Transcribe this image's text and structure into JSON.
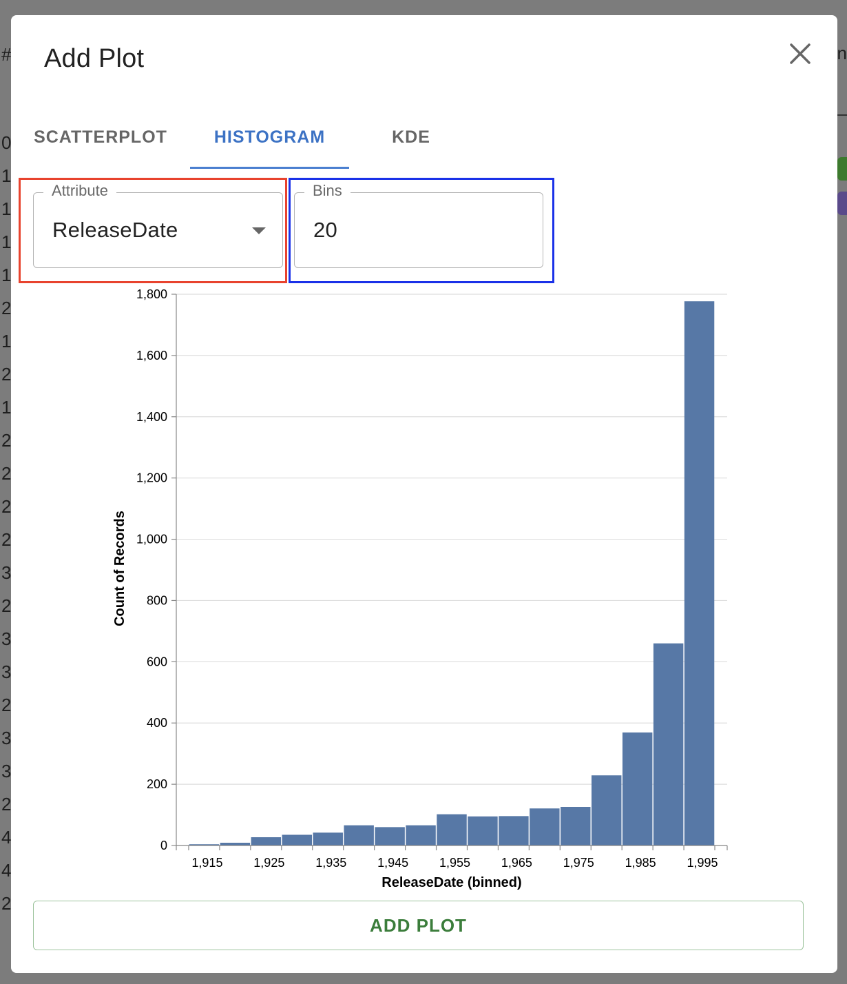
{
  "background": {
    "left_chars": [
      "#",
      "0",
      "1",
      "1",
      "1",
      "1",
      "2",
      "1",
      "2",
      "1",
      "2",
      "2",
      "2",
      "2",
      "3",
      "2",
      "3",
      "3",
      "2",
      "3",
      "3",
      "2",
      "4",
      "4",
      "2"
    ],
    "right_char": "n"
  },
  "modal": {
    "title": "Add Plot",
    "close_icon": "close-icon"
  },
  "tabs": [
    {
      "label": "SCATTERPLOT",
      "active": false
    },
    {
      "label": "HISTOGRAM",
      "active": true
    },
    {
      "label": "KDE",
      "active": false
    }
  ],
  "attribute_field": {
    "label": "Attribute",
    "value": "ReleaseDate",
    "icon": "dropdown-arrow-icon"
  },
  "bins_field": {
    "label": "Bins",
    "value": "20"
  },
  "colors": {
    "bar": "#5778a6",
    "active_tab": "#3c72c4",
    "add_button_text": "#3b7d3b",
    "highlight_attribute": "#e8432e",
    "highlight_bins": "#1a31e8"
  },
  "chart_data": {
    "type": "bar",
    "xlabel": "ReleaseDate (binned)",
    "ylabel": "Count of Records",
    "xlim": [
      1910,
      1999
    ],
    "ylim": [
      0,
      1800
    ],
    "bin_width": 5,
    "bins": [
      {
        "start": 1912,
        "end": 1917,
        "count": 4
      },
      {
        "start": 1917,
        "end": 1922,
        "count": 9
      },
      {
        "start": 1922,
        "end": 1927,
        "count": 27
      },
      {
        "start": 1927,
        "end": 1932,
        "count": 35
      },
      {
        "start": 1932,
        "end": 1937,
        "count": 42
      },
      {
        "start": 1937,
        "end": 1942,
        "count": 66
      },
      {
        "start": 1942,
        "end": 1947,
        "count": 60
      },
      {
        "start": 1947,
        "end": 1952,
        "count": 66
      },
      {
        "start": 1952,
        "end": 1957,
        "count": 102
      },
      {
        "start": 1957,
        "end": 1962,
        "count": 95
      },
      {
        "start": 1962,
        "end": 1967,
        "count": 96
      },
      {
        "start": 1967,
        "end": 1972,
        "count": 121
      },
      {
        "start": 1972,
        "end": 1977,
        "count": 126
      },
      {
        "start": 1977,
        "end": 1982,
        "count": 229
      },
      {
        "start": 1982,
        "end": 1987,
        "count": 369
      },
      {
        "start": 1987,
        "end": 1992,
        "count": 660
      },
      {
        "start": 1992,
        "end": 1997,
        "count": 1777
      }
    ],
    "x_ticks": [
      1915,
      1925,
      1935,
      1945,
      1955,
      1965,
      1975,
      1985,
      1995
    ],
    "x_tick_labels": [
      "1,915",
      "1,925",
      "1,935",
      "1,945",
      "1,955",
      "1,965",
      "1,975",
      "1,985",
      "1,995"
    ],
    "y_ticks": [
      0,
      200,
      400,
      600,
      800,
      1000,
      1200,
      1400,
      1600,
      1800
    ],
    "y_tick_labels": [
      "0",
      "200",
      "400",
      "600",
      "800",
      "1,000",
      "1,200",
      "1,400",
      "1,600",
      "1,800"
    ],
    "grid": true
  },
  "add_button": {
    "label": "ADD PLOT"
  }
}
